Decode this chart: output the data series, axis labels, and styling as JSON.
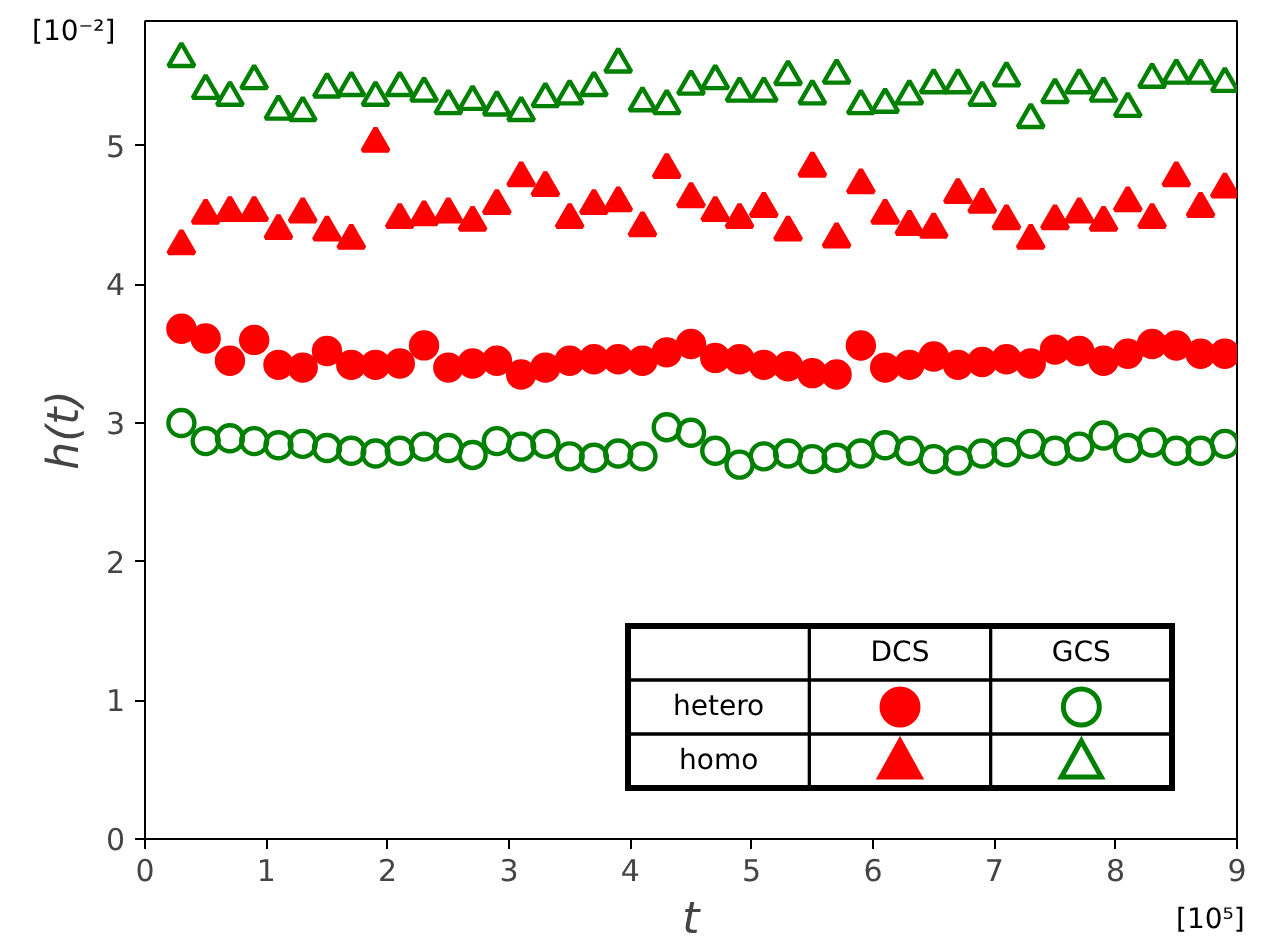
{
  "chart_data": {
    "type": "scatter",
    "xlabel": "t",
    "ylabel": "h(t)",
    "x": [
      0.3,
      0.5,
      0.7,
      0.9,
      1.1,
      1.3,
      1.5,
      1.7,
      1.9,
      2.1,
      2.3,
      2.5,
      2.7,
      2.9,
      3.1,
      3.3,
      3.5,
      3.7,
      3.9,
      4.1,
      4.3,
      4.5,
      4.7,
      4.9,
      5.1,
      5.3,
      5.5,
      5.7,
      5.9,
      6.1,
      6.3,
      6.5,
      6.7,
      6.9,
      7.1,
      7.3,
      7.5,
      7.7,
      7.9,
      8.1,
      8.3,
      8.5,
      8.7,
      8.9
    ],
    "xlim": [
      0,
      9
    ],
    "xticks": [
      0,
      1,
      2,
      3,
      4,
      5,
      6,
      7,
      8,
      9
    ],
    "ylim": [
      0,
      5.9
    ],
    "yticks": [
      0,
      1,
      2,
      3,
      4,
      5
    ],
    "grid": false,
    "annotations": [
      "[10⁵]",
      "[10⁻²]",
      "DCS",
      "GCS",
      "hetero",
      "homo"
    ],
    "series": [
      {
        "color": "#ff0000",
        "marker": "circle",
        "values": [
          3.68,
          3.61,
          3.45,
          3.6,
          3.42,
          3.4,
          3.52,
          3.42,
          3.42,
          3.43,
          3.56,
          3.4,
          3.43,
          3.45,
          3.35,
          3.4,
          3.45,
          3.46,
          3.46,
          3.45,
          3.51,
          3.57,
          3.47,
          3.46,
          3.42,
          3.41,
          3.36,
          3.35,
          3.56,
          3.4,
          3.42,
          3.48,
          3.42,
          3.44,
          3.46,
          3.43,
          3.53,
          3.52,
          3.45,
          3.5,
          3.57,
          3.56,
          3.5,
          3.5
        ]
      },
      {
        "color": "#008000",
        "marker": "circle",
        "values": [
          3.0,
          2.87,
          2.89,
          2.87,
          2.84,
          2.85,
          2.82,
          2.8,
          2.78,
          2.8,
          2.83,
          2.82,
          2.77,
          2.87,
          2.83,
          2.85,
          2.76,
          2.75,
          2.78,
          2.76,
          2.97,
          2.93,
          2.8,
          2.7,
          2.76,
          2.78,
          2.74,
          2.75,
          2.78,
          2.84,
          2.8,
          2.74,
          2.73,
          2.78,
          2.79,
          2.85,
          2.8,
          2.83,
          2.91,
          2.82,
          2.86,
          2.8,
          2.8,
          2.85
        ]
      },
      {
        "color": "#ff0000",
        "marker": "triangle",
        "values": [
          4.28,
          4.5,
          4.52,
          4.52,
          4.39,
          4.51,
          4.38,
          4.32,
          5.02,
          4.47,
          4.49,
          4.51,
          4.45,
          4.57,
          4.77,
          4.7,
          4.47,
          4.57,
          4.59,
          4.41,
          4.83,
          4.62,
          4.52,
          4.47,
          4.55,
          4.38,
          4.84,
          4.33,
          4.72,
          4.5,
          4.42,
          4.4,
          4.65,
          4.58,
          4.46,
          4.32,
          4.46,
          4.51,
          4.45,
          4.59,
          4.47,
          4.77,
          4.55,
          4.69
        ]
      },
      {
        "color": "#008000",
        "marker": "triangle",
        "values": [
          5.63,
          5.4,
          5.35,
          5.47,
          5.25,
          5.24,
          5.41,
          5.42,
          5.35,
          5.42,
          5.38,
          5.29,
          5.32,
          5.28,
          5.24,
          5.34,
          5.36,
          5.42,
          5.59,
          5.31,
          5.29,
          5.43,
          5.47,
          5.38,
          5.38,
          5.5,
          5.36,
          5.51,
          5.29,
          5.3,
          5.36,
          5.44,
          5.44,
          5.35,
          5.49,
          5.19,
          5.37,
          5.44,
          5.38,
          5.27,
          5.48,
          5.51,
          5.51,
          5.45
        ]
      }
    ]
  }
}
